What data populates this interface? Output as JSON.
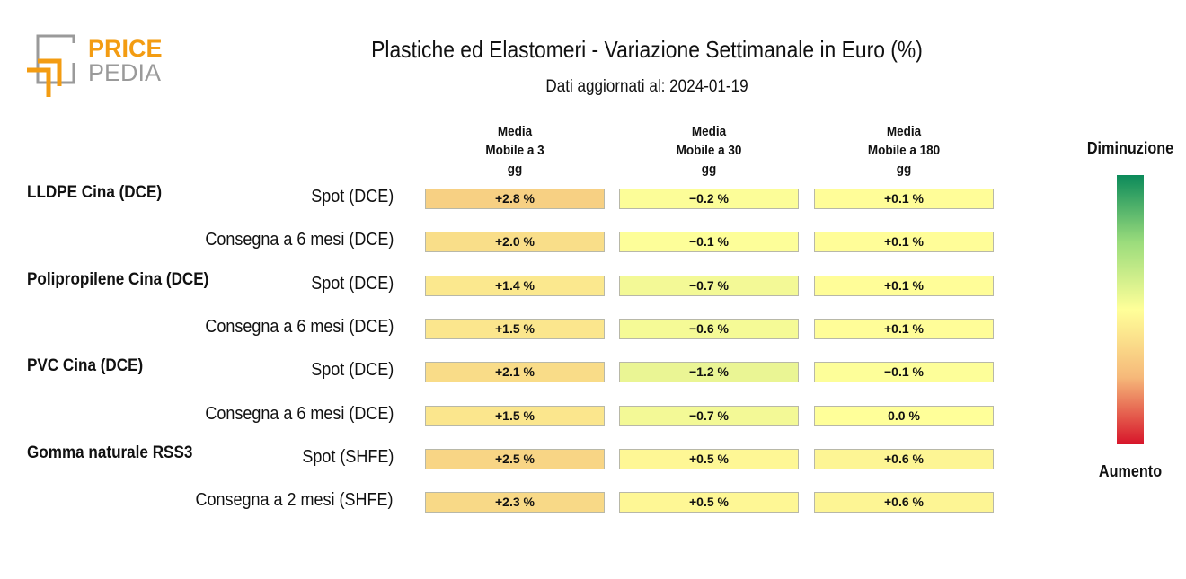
{
  "logo": {
    "line1": "PRICE",
    "line2": "PEDIA",
    "accent_color": "#f39c12",
    "gray_color": "#9a9a9a"
  },
  "header": {
    "title": "Plastiche ed Elastomeri - Variazione Settimanale in Euro (%)",
    "subtitle": "Dati aggiornati al: 2024-01-19"
  },
  "legend": {
    "top_label": "Diminuzione",
    "bottom_label": "Aumento"
  },
  "chart_data": {
    "type": "table",
    "columns": [
      "Media\nMobile a 3\ngg",
      "Media\nMobile a 30\ngg",
      "Media\nMobile a 180\ngg"
    ],
    "groups": [
      {
        "name": "LLDPE Cina (DCE)",
        "rows": [
          {
            "label": "Spot (DCE)",
            "values": [
              2.8,
              -0.2,
              0.1
            ],
            "texts": [
              "+2.8 %",
              "−0.2 %",
              "+0.1 %"
            ]
          },
          {
            "label": "Consegna a 6 mesi (DCE)",
            "values": [
              2.0,
              -0.1,
              0.1
            ],
            "texts": [
              "+2.0 %",
              "−0.1 %",
              "+0.1 %"
            ]
          }
        ]
      },
      {
        "name": "Polipropilene Cina (DCE)",
        "rows": [
          {
            "label": "Spot (DCE)",
            "values": [
              1.4,
              -0.7,
              0.1
            ],
            "texts": [
              "+1.4 %",
              "−0.7 %",
              "+0.1 %"
            ]
          },
          {
            "label": "Consegna a 6 mesi (DCE)",
            "values": [
              1.5,
              -0.6,
              0.1
            ],
            "texts": [
              "+1.5 %",
              "−0.6 %",
              "+0.1 %"
            ]
          }
        ]
      },
      {
        "name": "PVC Cina (DCE)",
        "rows": [
          {
            "label": "Spot (DCE)",
            "values": [
              2.1,
              -1.2,
              -0.1
            ],
            "texts": [
              "+2.1 %",
              "−1.2 %",
              "−0.1 %"
            ]
          },
          {
            "label": "Consegna a 6 mesi (DCE)",
            "values": [
              1.5,
              -0.7,
              0.0
            ],
            "texts": [
              "+1.5 %",
              "−0.7 %",
              "0.0 %"
            ]
          }
        ]
      },
      {
        "name": "Gomma naturale RSS3",
        "rows": [
          {
            "label": "Spot (SHFE)",
            "values": [
              2.5,
              0.5,
              0.6
            ],
            "texts": [
              "+2.5 %",
              "+0.5 %",
              "+0.6 %"
            ]
          },
          {
            "label": "Consegna a 2 mesi (SHFE)",
            "values": [
              2.3,
              0.5,
              0.6
            ],
            "texts": [
              "+2.3 %",
              "+0.5 %",
              "+0.6 %"
            ]
          }
        ]
      }
    ],
    "color_scale": {
      "decrease": "#0b8a5a",
      "neutral": "#ffff99",
      "increase": "#d7152a"
    }
  }
}
